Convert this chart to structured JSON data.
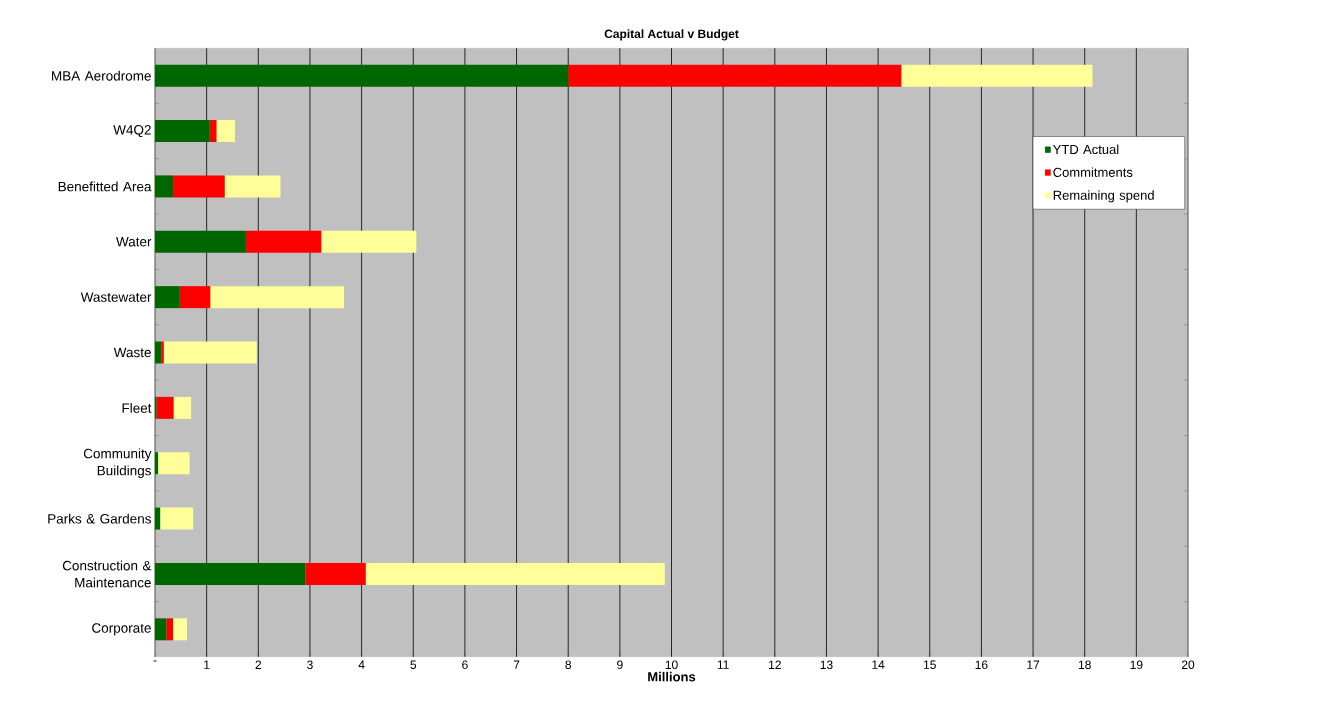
{
  "chart_data": {
    "type": "bar",
    "orientation": "horizontal",
    "stacked": true,
    "title": "Capital Actual  v Budget",
    "xlabel": "Millions",
    "categories": [
      "MBA Aerodrome",
      "W4Q2",
      "Benefitted Area",
      "Water",
      "Wastewater",
      "Waste",
      "Fleet",
      "Community Buildings",
      "Parks & Gardens",
      "Construction & Maintenance",
      "Corporate"
    ],
    "series": [
      {
        "name": "YTD Actual",
        "color": "#006600",
        "values": [
          8.0,
          1.06,
          0.35,
          1.76,
          0.48,
          0.12,
          0.03,
          0.06,
          0.1,
          2.91,
          0.22
        ]
      },
      {
        "name": "Commitments",
        "color": "#ff0000",
        "values": [
          6.45,
          0.13,
          1.0,
          1.46,
          0.59,
          0.05,
          0.33,
          0.0,
          0.0,
          1.17,
          0.13
        ]
      },
      {
        "name": "Remaining spend",
        "color": "#ffff99",
        "values": [
          3.7,
          0.36,
          1.08,
          1.84,
          2.59,
          1.8,
          0.34,
          0.61,
          0.64,
          5.79,
          0.27
        ]
      }
    ],
    "xlim": [
      0,
      20
    ],
    "xticks": [
      {
        "value": 0,
        "label": "-"
      },
      1,
      2,
      3,
      4,
      5,
      6,
      7,
      8,
      9,
      10,
      11,
      12,
      13,
      14,
      15,
      16,
      17,
      18,
      19,
      20
    ],
    "grid": "x",
    "legend": "top right"
  }
}
